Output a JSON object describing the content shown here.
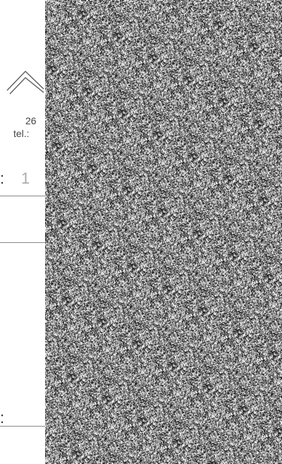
{
  "letterhead": {
    "address_fragment": "26",
    "tel_label": "tel.:"
  },
  "form": {
    "field1_label": ":",
    "field1_value": "1",
    "field2_label": ":"
  },
  "colors": {
    "noise_dark": "#1a1a1a",
    "noise_light": "#f2f2f2",
    "rule": "#888888",
    "text": "#444444"
  }
}
